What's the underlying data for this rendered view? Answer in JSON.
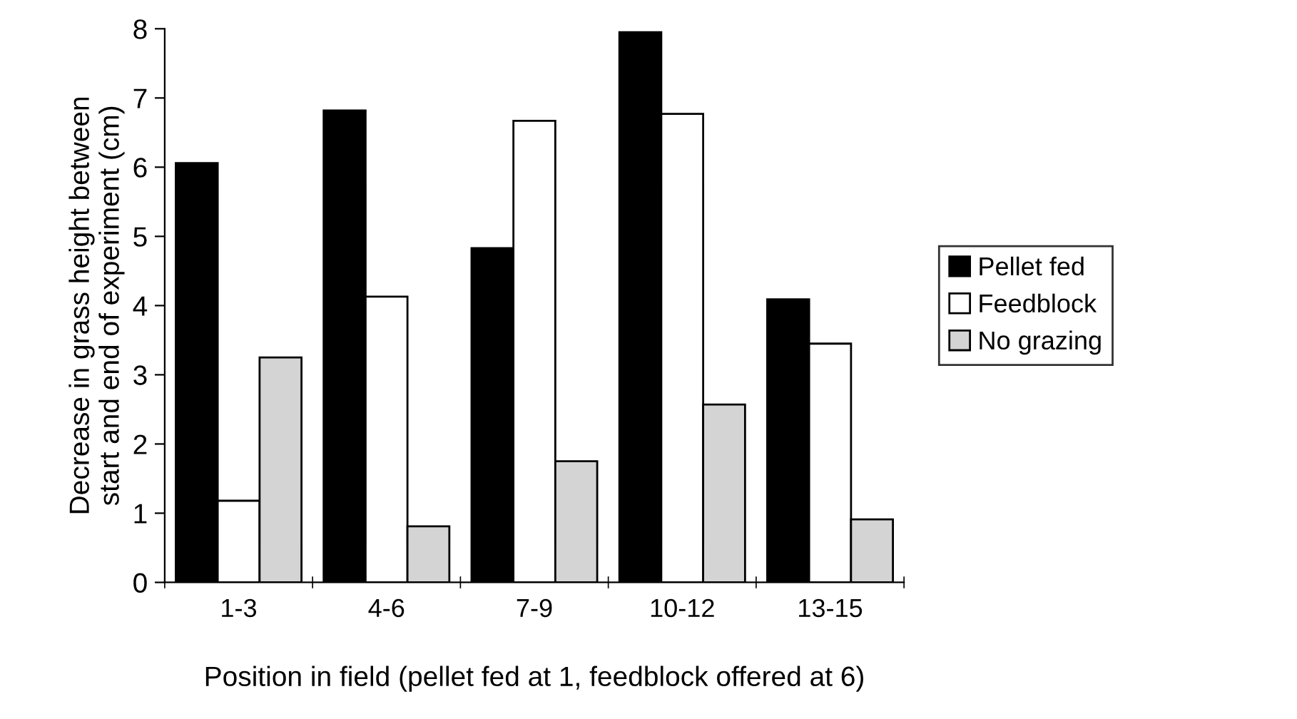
{
  "chart_data": {
    "type": "bar",
    "xlabel": "Position in field (pellet fed at 1, feedblock offered at 6)",
    "ylabel": "Decrease in grass height between\nstart and end of experiment (cm)",
    "categories": [
      "1-3",
      "4-6",
      "7-9",
      "10-12",
      "13-15"
    ],
    "series": [
      {
        "name": "Pellet fed",
        "color": "#000000",
        "values": [
          6.06,
          6.82,
          4.83,
          7.95,
          4.09
        ]
      },
      {
        "name": "Feedblock",
        "color": "#ffffff",
        "values": [
          1.18,
          4.13,
          6.67,
          6.77,
          3.45
        ]
      },
      {
        "name": "No grazing",
        "color": "#d4d4d4",
        "values": [
          3.25,
          0.81,
          1.75,
          2.57,
          0.91
        ]
      }
    ],
    "ylim": [
      0,
      8
    ],
    "yticks": [
      0,
      1,
      2,
      3,
      4,
      5,
      6,
      7,
      8
    ],
    "grid": false,
    "legend": "right"
  }
}
